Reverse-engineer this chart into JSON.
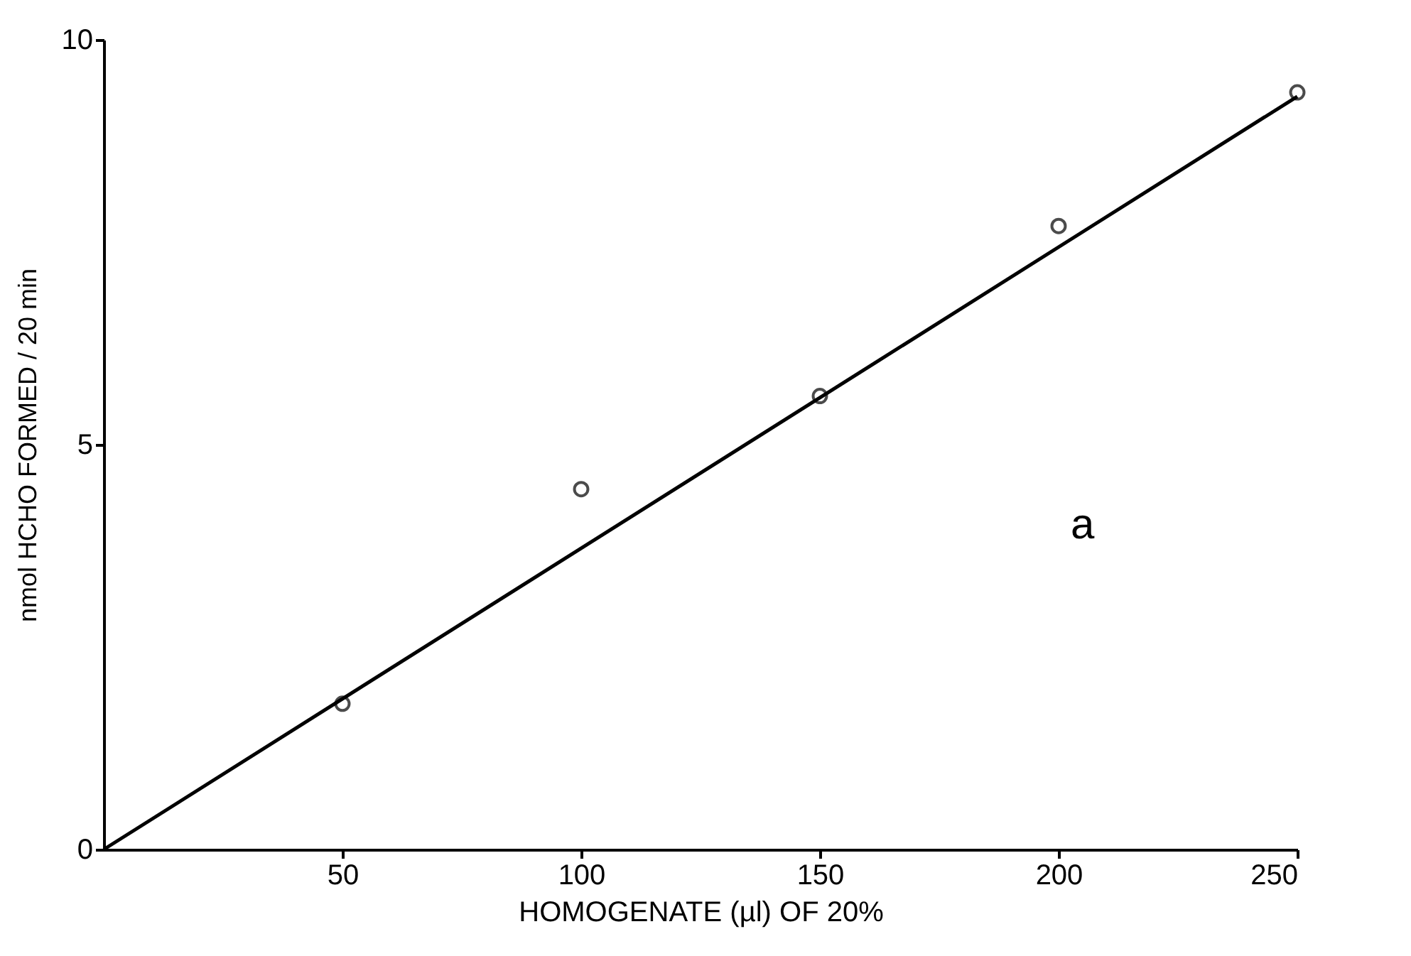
{
  "chart_data": {
    "type": "scatter",
    "xlabel": "HOMOGENATE (µl) OF 20%",
    "ylabel": "nmol HCHO  FORMED / 20 min",
    "x": [
      50,
      100,
      150,
      200,
      250
    ],
    "series": [
      {
        "type": "scatter",
        "color": "#000000",
        "values": [
          1.8,
          4.45,
          5.6,
          7.7,
          9.35
        ],
        "marker": "circle"
      },
      {
        "type": "line",
        "color": "#000000",
        "x": [
          0,
          250
        ],
        "values": [
          0,
          9.3
        ],
        "marker": "none"
      }
    ],
    "xlim": [
      0,
      250
    ],
    "xticks": [
      50,
      100,
      150,
      200,
      250
    ],
    "ylim": [
      0,
      10
    ],
    "yticks": [
      0,
      5,
      10
    ],
    "annotations": [
      "a"
    ]
  }
}
